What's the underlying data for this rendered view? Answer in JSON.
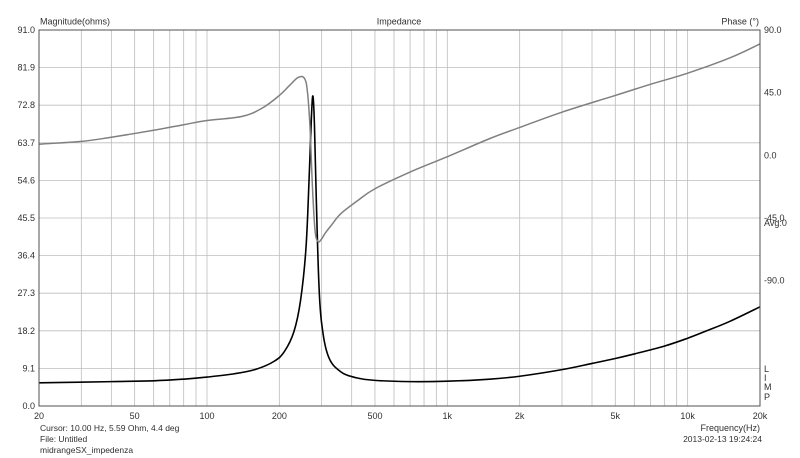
{
  "chart_data": {
    "type": "line",
    "title": "Impedance",
    "ylabel_left": "Magnitude(ohms)",
    "ylabel_right": "Phase (°)",
    "xlabel": "Frequency(Hz)",
    "x_scale": "log",
    "xlim": [
      20,
      20000
    ],
    "ylim_left": [
      0,
      91
    ],
    "ylim_right": [
      -180,
      90
    ],
    "grid": true,
    "x_ticks": [
      20,
      50,
      100,
      200,
      500,
      1000,
      2000,
      5000,
      10000,
      20000
    ],
    "x_tick_labels": [
      "20",
      "50",
      "100",
      "200",
      "500",
      "1k",
      "2k",
      "5k",
      "10k",
      "20k"
    ],
    "y_left_ticks": [
      "91.0",
      "81.9",
      "72.8",
      "63.7",
      "54.6",
      "45.5",
      "36.4",
      "27.3",
      "18.2",
      "9.1",
      "0.0"
    ],
    "y_right_ticks": [
      "90.0",
      "45.0",
      "0.0",
      "-45.0",
      "-90.0"
    ],
    "right_annotations": [
      "Avg:0",
      "L",
      "I",
      "M",
      "P"
    ],
    "series": [
      {
        "name": "",
        "axis": "left",
        "color": "#000000",
        "x": [
          20,
          40,
          60,
          80,
          100,
          130,
          160,
          190,
          210,
          230,
          245,
          258,
          266,
          272,
          276,
          280,
          285,
          292,
          300,
          320,
          360,
          420,
          500,
          700,
          1000,
          1500,
          2000,
          3000,
          4000,
          5000,
          6000,
          8000,
          10000,
          12000,
          15000,
          20000
        ],
        "y": [
          5.6,
          5.9,
          6.1,
          6.5,
          7.0,
          7.8,
          8.9,
          10.8,
          13.2,
          18.0,
          25.5,
          38.0,
          55.0,
          70.0,
          75.0,
          68.0,
          50.0,
          30.0,
          20.0,
          12.0,
          8.3,
          6.8,
          6.2,
          5.9,
          6.0,
          6.5,
          7.2,
          8.8,
          10.3,
          11.5,
          12.6,
          14.5,
          16.4,
          18.2,
          20.5,
          24.0
        ]
      },
      {
        "name": "",
        "axis": "right",
        "color": "#808080",
        "x": [
          20,
          30,
          40,
          60,
          80,
          100,
          140,
          170,
          200,
          220,
          240,
          255,
          262,
          268,
          272,
          276,
          282,
          290,
          300,
          310,
          330,
          360,
          420,
          500,
          700,
          1000,
          1500,
          2000,
          3000,
          5000,
          7000,
          10000,
          15000,
          20000
        ],
        "y": [
          8,
          10,
          13,
          18,
          22,
          25,
          28,
          34,
          43,
          50,
          56,
          55,
          45,
          22,
          -5,
          -30,
          -55,
          -62,
          -60,
          -56,
          -50,
          -42,
          -33,
          -24,
          -12,
          -1,
          12,
          20,
          31,
          43,
          51,
          59,
          70,
          80
        ]
      }
    ]
  },
  "footer": {
    "cursor": "Cursor: 10.00 Hz, 5.59 Ohm, 4.4 deg",
    "file": "File: Untitled",
    "name": "midrangeSX_impedenza",
    "timestamp": "2013-02-13 19:24:24"
  }
}
